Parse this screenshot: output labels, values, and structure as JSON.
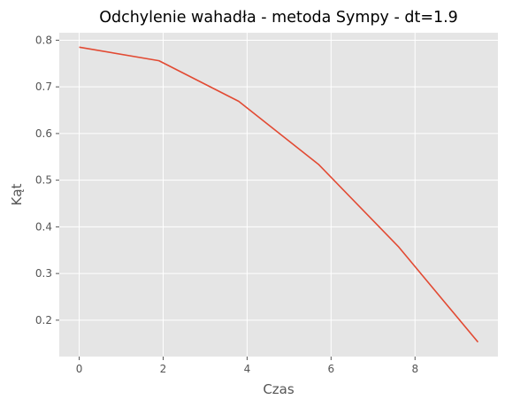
{
  "chart_data": {
    "type": "line",
    "title": "Odchylenie wahadła - metoda Sympy - dt=1.9",
    "xlabel": "Czas",
    "ylabel": "Kąt",
    "xlim": [
      -0.475,
      9.975
    ],
    "ylim": [
      0.122,
      0.816
    ],
    "x_ticks": [
      0,
      2,
      4,
      6,
      8
    ],
    "y_ticks": [
      0.2,
      0.3,
      0.4,
      0.5,
      0.6,
      0.7,
      0.8
    ],
    "x_tick_labels": [
      "0",
      "2",
      "4",
      "6",
      "8"
    ],
    "y_tick_labels": [
      "0.2",
      "0.3",
      "0.4",
      "0.5",
      "0.6",
      "0.7",
      "0.8"
    ],
    "grid": true,
    "style": "ggplot",
    "series": [
      {
        "color": "#e24a33",
        "x": [
          0,
          1.9,
          3.8,
          5.7,
          7.6,
          9.5
        ],
        "y": [
          0.785,
          0.756,
          0.669,
          0.534,
          0.358,
          0.153
        ]
      }
    ]
  },
  "colors": {
    "plot_background": "#e5e5e5",
    "grid": "#ffffff",
    "line": "#e24a33"
  }
}
